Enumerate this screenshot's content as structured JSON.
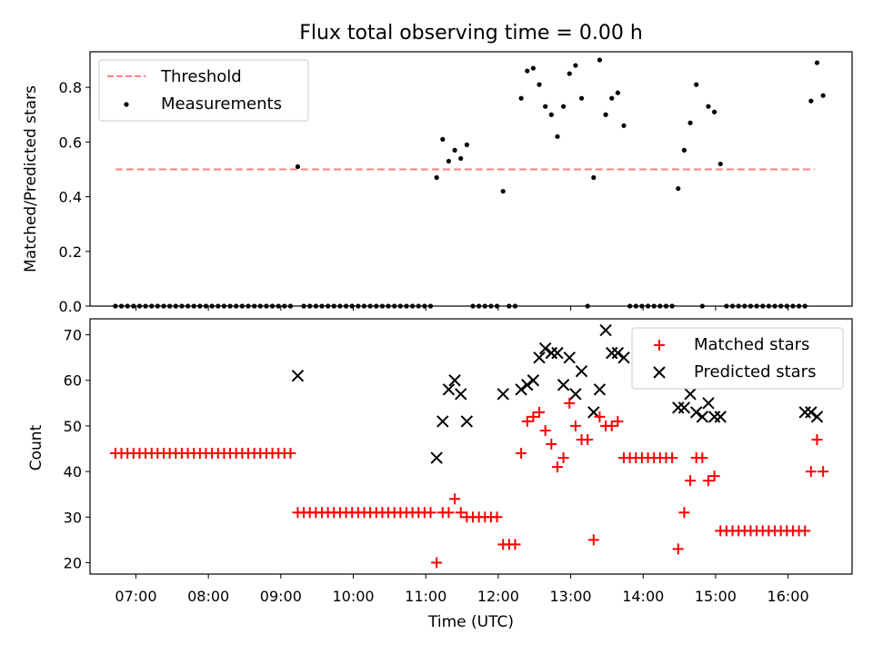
{
  "title": "Flux total observing time = 0.00 h",
  "colors": {
    "threshold": "#ff7f7f",
    "measurements": "#000000",
    "matched": "#ff0000",
    "predicted": "#000000"
  },
  "chart_data": [
    {
      "type": "scatter",
      "ylabel": "Matched/Predicted stars",
      "ylim": [
        0,
        0.93
      ],
      "yticks": [
        0.0,
        0.2,
        0.4,
        0.6,
        0.8
      ],
      "ytick_labels": [
        "0.0",
        "0.2",
        "0.4",
        "0.6",
        "0.8"
      ],
      "xlim": [
        "06:22",
        "16:53"
      ],
      "grid": false,
      "legend_position": "top-left",
      "threshold": {
        "name": "Threshold",
        "value": 0.5,
        "x_start": "06:43",
        "x_end": "16:22"
      },
      "measurements": {
        "name": "Measurements",
        "x": [
          "06:43",
          "06:48",
          "06:53",
          "06:58",
          "07:03",
          "07:08",
          "07:13",
          "07:18",
          "07:23",
          "07:28",
          "07:33",
          "07:38",
          "07:43",
          "07:48",
          "07:53",
          "07:58",
          "08:03",
          "08:08",
          "08:13",
          "08:18",
          "08:23",
          "08:28",
          "08:33",
          "08:38",
          "08:43",
          "08:48",
          "08:53",
          "08:58",
          "09:03",
          "09:08",
          "09:14",
          "09:19",
          "09:24",
          "09:29",
          "09:34",
          "09:39",
          "09:44",
          "09:49",
          "09:54",
          "09:59",
          "10:04",
          "10:09",
          "10:14",
          "10:19",
          "10:24",
          "10:29",
          "10:34",
          "10:39",
          "10:44",
          "10:49",
          "10:54",
          "10:59",
          "11:04",
          "11:09",
          "11:14",
          "11:19",
          "11:24",
          "11:29",
          "11:34",
          "11:39",
          "11:44",
          "11:49",
          "11:54",
          "11:59",
          "12:04",
          "12:09",
          "12:14",
          "12:19",
          "12:24",
          "12:29",
          "12:34",
          "12:39",
          "12:44",
          "12:49",
          "12:54",
          "12:59",
          "13:04",
          "13:09",
          "13:14",
          "13:19",
          "13:24",
          "13:29",
          "13:34",
          "13:39",
          "13:44",
          "13:49",
          "13:54",
          "13:59",
          "14:04",
          "14:09",
          "14:14",
          "14:19",
          "14:24",
          "14:29",
          "14:34",
          "14:39",
          "14:44",
          "14:49",
          "14:54",
          "14:59",
          "15:04",
          "15:09",
          "15:14",
          "15:19",
          "15:24",
          "15:29",
          "15:34",
          "15:39",
          "15:44",
          "15:49",
          "15:54",
          "15:59",
          "16:04",
          "16:09",
          "16:14",
          "16:19",
          "16:24",
          "16:29"
        ],
        "y": [
          0,
          0,
          0,
          0,
          0,
          0,
          0,
          0,
          0,
          0,
          0,
          0,
          0,
          0,
          0,
          0,
          0,
          0,
          0,
          0,
          0,
          0,
          0,
          0,
          0,
          0,
          0,
          0,
          0,
          0,
          0.51,
          0,
          0,
          0,
          0,
          0,
          0,
          0,
          0,
          0,
          0,
          0,
          0,
          0,
          0,
          0,
          0,
          0,
          0,
          0,
          0,
          0,
          0,
          0.47,
          0.61,
          0.53,
          0.57,
          0.54,
          0.59,
          0,
          0,
          0,
          0,
          0,
          0.42,
          0,
          0,
          0.76,
          0.86,
          0.87,
          0.81,
          0.73,
          0.7,
          0.62,
          0.73,
          0.85,
          0.88,
          0.76,
          0,
          0.47,
          0.9,
          0.7,
          0.76,
          0.78,
          0.66,
          0,
          0,
          0,
          0,
          0,
          0,
          0,
          0,
          0.43,
          0.57,
          0.67,
          0.81,
          0,
          0.73,
          0.71,
          0.52,
          0,
          0,
          0,
          0,
          0,
          0,
          0,
          0,
          0,
          0,
          0,
          0,
          0,
          0,
          0.75,
          0.89,
          0.77
        ]
      }
    },
    {
      "type": "scatter",
      "xlabel": "Time (UTC)",
      "ylabel": "Count",
      "ylim": [
        17.5,
        73.5
      ],
      "yticks": [
        20,
        30,
        40,
        50,
        60,
        70
      ],
      "ytick_labels": [
        "20",
        "30",
        "40",
        "50",
        "60",
        "70"
      ],
      "xlim": [
        "06:22",
        "16:53"
      ],
      "xticks": [
        "07:00",
        "08:00",
        "09:00",
        "10:00",
        "11:00",
        "12:00",
        "13:00",
        "14:00",
        "15:00",
        "16:00"
      ],
      "xtick_labels": [
        "07:00",
        "08:00",
        "09:00",
        "10:00",
        "11:00",
        "12:00",
        "13:00",
        "14:00",
        "15:00",
        "16:00"
      ],
      "grid": false,
      "legend_position": "top-right",
      "series": [
        {
          "name": "Matched stars",
          "marker": "plus",
          "x": [
            "06:43",
            "06:48",
            "06:53",
            "06:58",
            "07:03",
            "07:08",
            "07:13",
            "07:18",
            "07:23",
            "07:28",
            "07:33",
            "07:38",
            "07:43",
            "07:48",
            "07:53",
            "07:58",
            "08:03",
            "08:08",
            "08:13",
            "08:18",
            "08:23",
            "08:28",
            "08:33",
            "08:38",
            "08:43",
            "08:48",
            "08:53",
            "08:58",
            "09:03",
            "09:08",
            "09:14",
            "09:19",
            "09:24",
            "09:29",
            "09:34",
            "09:39",
            "09:44",
            "09:49",
            "09:54",
            "09:59",
            "10:04",
            "10:09",
            "10:14",
            "10:19",
            "10:24",
            "10:29",
            "10:34",
            "10:39",
            "10:44",
            "10:49",
            "10:54",
            "10:59",
            "11:04",
            "11:09",
            "11:14",
            "11:19",
            "11:24",
            "11:29",
            "11:34",
            "11:39",
            "11:44",
            "11:49",
            "11:54",
            "11:59",
            "12:04",
            "12:09",
            "12:14",
            "12:19",
            "12:24",
            "12:29",
            "12:34",
            "12:39",
            "12:44",
            "12:49",
            "12:54",
            "12:59",
            "13:04",
            "13:09",
            "13:14",
            "13:19",
            "13:24",
            "13:29",
            "13:34",
            "13:39",
            "13:44",
            "13:49",
            "13:54",
            "13:59",
            "14:04",
            "14:09",
            "14:14",
            "14:19",
            "14:24",
            "14:29",
            "14:34",
            "14:39",
            "14:44",
            "14:49",
            "14:54",
            "14:59",
            "15:04",
            "15:09",
            "15:14",
            "15:19",
            "15:24",
            "15:29",
            "15:34",
            "15:39",
            "15:44",
            "15:49",
            "15:54",
            "15:59",
            "16:04",
            "16:09",
            "16:14",
            "16:19",
            "16:24",
            "16:29"
          ],
          "y": [
            44,
            44,
            44,
            44,
            44,
            44,
            44,
            44,
            44,
            44,
            44,
            44,
            44,
            44,
            44,
            44,
            44,
            44,
            44,
            44,
            44,
            44,
            44,
            44,
            44,
            44,
            44,
            44,
            44,
            44,
            31,
            31,
            31,
            31,
            31,
            31,
            31,
            31,
            31,
            31,
            31,
            31,
            31,
            31,
            31,
            31,
            31,
            31,
            31,
            31,
            31,
            31,
            31,
            20,
            31,
            31,
            34,
            31,
            30,
            30,
            30,
            30,
            30,
            30,
            24,
            24,
            24,
            44,
            51,
            52,
            53,
            49,
            46,
            41,
            43,
            55,
            50,
            47,
            47,
            25,
            52,
            50,
            50,
            51,
            43,
            43,
            43,
            43,
            43,
            43,
            43,
            43,
            43,
            23,
            31,
            38,
            43,
            43,
            38,
            39,
            27,
            27,
            27,
            27,
            27,
            27,
            27,
            27,
            27,
            27,
            27,
            27,
            27,
            27,
            27,
            40,
            47,
            40
          ]
        },
        {
          "name": "Predicted stars",
          "marker": "x",
          "x": [
            "09:14",
            "11:09",
            "11:14",
            "11:19",
            "11:24",
            "11:29",
            "11:34",
            "12:04",
            "12:19",
            "12:24",
            "12:29",
            "12:34",
            "12:39",
            "12:44",
            "12:49",
            "12:54",
            "12:59",
            "13:04",
            "13:09",
            "13:19",
            "13:24",
            "13:29",
            "13:34",
            "13:39",
            "13:44",
            "14:29",
            "14:34",
            "14:39",
            "14:44",
            "14:49",
            "14:54",
            "14:59",
            "15:04",
            "16:14",
            "16:19",
            "16:24"
          ],
          "y": [
            61,
            43,
            51,
            58,
            60,
            57,
            51,
            57,
            58,
            59,
            60,
            65,
            67,
            66,
            66,
            59,
            65,
            57,
            62,
            53,
            58,
            71,
            66,
            66,
            65,
            54,
            54,
            57,
            53,
            52,
            55,
            52,
            52,
            53,
            53,
            52
          ]
        }
      ]
    }
  ]
}
